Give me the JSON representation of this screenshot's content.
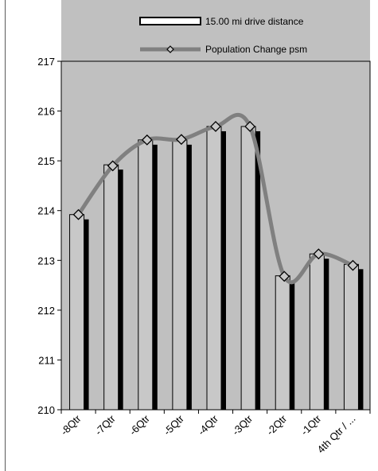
{
  "chart_data": {
    "type": "bar",
    "categories": [
      "-8Qtr",
      "-7Qtr",
      "-6Qtr",
      "-5Qtr",
      "-4Qtr",
      "-3Qtr",
      "-2Qtr",
      "-1Qtr",
      "4th Qtr / ..."
    ],
    "series": [
      {
        "name": "15.00 mi drive distance",
        "kind": "bar",
        "values": [
          213.92,
          214.92,
          215.42,
          215.42,
          215.69,
          215.69,
          212.69,
          213.13,
          212.92
        ]
      },
      {
        "name": "Population Change psm",
        "kind": "line",
        "values": [
          213.92,
          214.9,
          215.42,
          215.43,
          215.69,
          215.69,
          212.68,
          213.13,
          212.9
        ]
      }
    ],
    "ylim": [
      210,
      217
    ],
    "yticks": [
      210,
      211,
      212,
      213,
      214,
      215,
      216,
      217
    ],
    "grid": false,
    "legend_position": "top",
    "colors": {
      "plot_background": "#c0c0c0",
      "bar_fill": "#c8c8c8",
      "bar_shadow": "#000000",
      "line": "#808080",
      "marker_fill": "#c8c8c8"
    }
  }
}
